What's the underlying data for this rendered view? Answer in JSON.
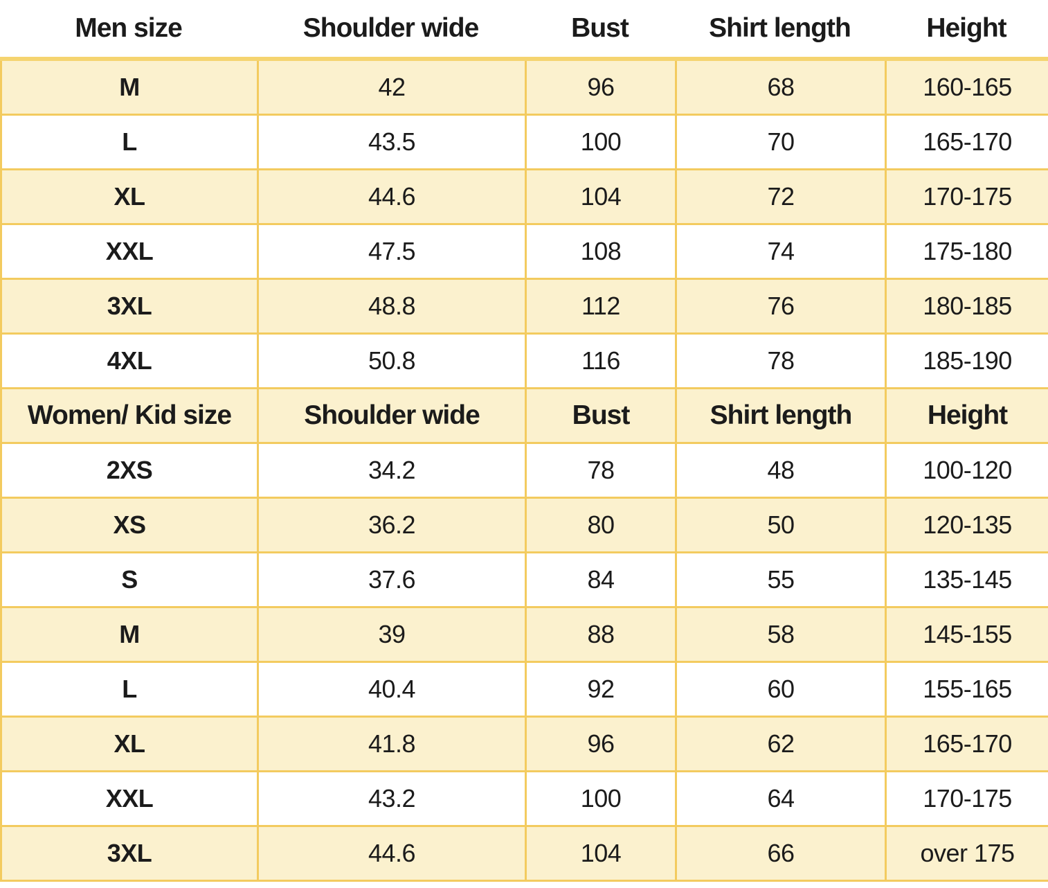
{
  "colors": {
    "background": "#FFFFFF",
    "row_fill": "#FBF1CE",
    "grid_line": "#F3CB5F",
    "grid_top_line": "#F5D470",
    "text": "#1B1B1B"
  },
  "chart_data": {
    "type": "table",
    "layout_hints": {
      "striped": true,
      "first_data_row_fill": "cream",
      "men_header_style": "borderless-white",
      "women_header_style": "in-grid cream bold row"
    },
    "sections": [
      {
        "header": [
          "Men size",
          "Shoulder wide",
          "Bust",
          "Shirt length",
          "Height"
        ],
        "rows": [
          [
            "M",
            "42",
            "96",
            "68",
            "160-165"
          ],
          [
            "L",
            "43.5",
            "100",
            "70",
            "165-170"
          ],
          [
            "XL",
            "44.6",
            "104",
            "72",
            "170-175"
          ],
          [
            "XXL",
            "47.5",
            "108",
            "74",
            "175-180"
          ],
          [
            "3XL",
            "48.8",
            "112",
            "76",
            "180-185"
          ],
          [
            "4XL",
            "50.8",
            "116",
            "78",
            "185-190"
          ]
        ]
      },
      {
        "header": [
          "Women/ Kid size",
          "Shoulder wide",
          "Bust",
          "Shirt length",
          "Height"
        ],
        "rows": [
          [
            "2XS",
            "34.2",
            "78",
            "48",
            "100-120"
          ],
          [
            "XS",
            "36.2",
            "80",
            "50",
            "120-135"
          ],
          [
            "S",
            "37.6",
            "84",
            "55",
            "135-145"
          ],
          [
            "M",
            "39",
            "88",
            "58",
            "145-155"
          ],
          [
            "L",
            "40.4",
            "92",
            "60",
            "155-165"
          ],
          [
            "XL",
            "41.8",
            "96",
            "62",
            "165-170"
          ],
          [
            "XXL",
            "43.2",
            "100",
            "64",
            "170-175"
          ],
          [
            "3XL",
            "44.6",
            "104",
            "66",
            "over 175"
          ]
        ]
      }
    ]
  }
}
